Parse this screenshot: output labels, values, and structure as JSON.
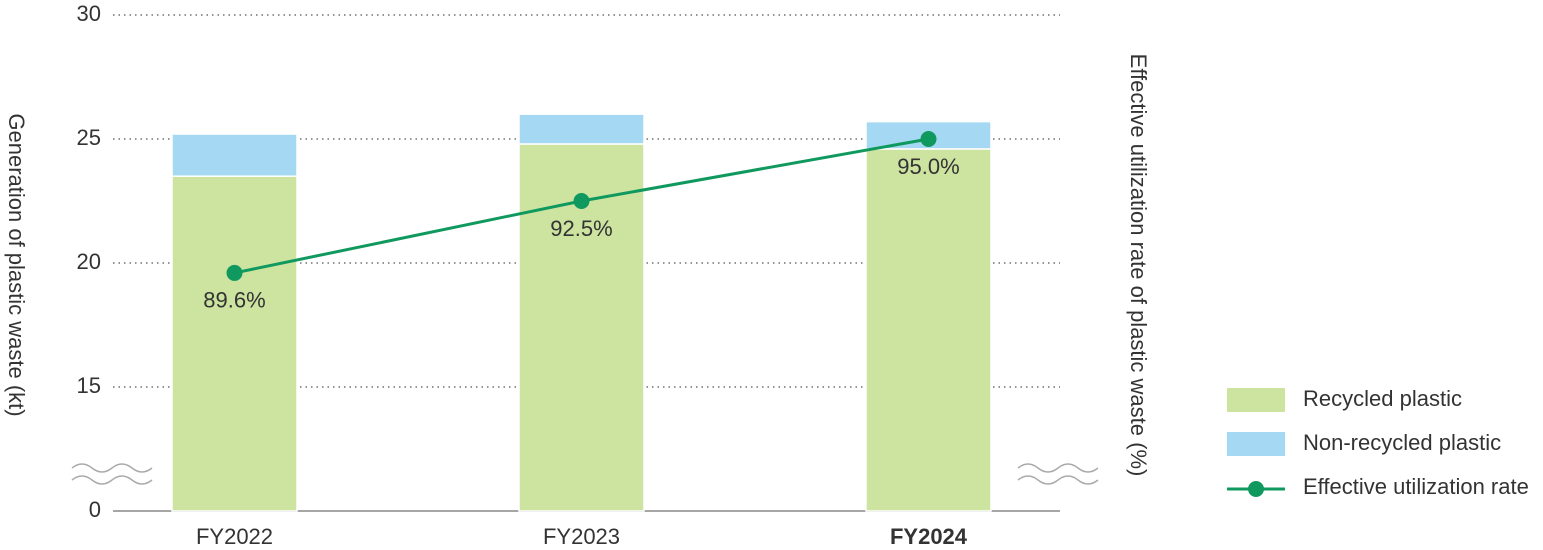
{
  "chart_data": {
    "type": "bar",
    "stacked": true,
    "categories": [
      "FY2022",
      "FY2023",
      "FY2024"
    ],
    "y_label": "Generation of plastic waste (kt)",
    "y2_label": "Effective utilization rate of plastic waste (%)",
    "ylim": [
      0,
      30
    ],
    "yticks": [
      0,
      15,
      20,
      25,
      30
    ],
    "axis_break": true,
    "y2lim": [
      80,
      100
    ],
    "grid": true,
    "legend": "right",
    "series": [
      {
        "name": "Recycled plastic",
        "color": "#cde3a0",
        "values": [
          23.5,
          24.8,
          24.6
        ]
      },
      {
        "name": "Non-recycled plastic",
        "color": "#a5d8f3",
        "values": [
          1.7,
          1.2,
          1.1
        ]
      },
      {
        "name": "Effective utilization rate",
        "type": "line",
        "axis": "y2",
        "color": "#10995f",
        "values": [
          89.6,
          92.5,
          95.0
        ],
        "value_labels": [
          "89.6%",
          "92.5%",
          "95.0%"
        ]
      }
    ]
  }
}
